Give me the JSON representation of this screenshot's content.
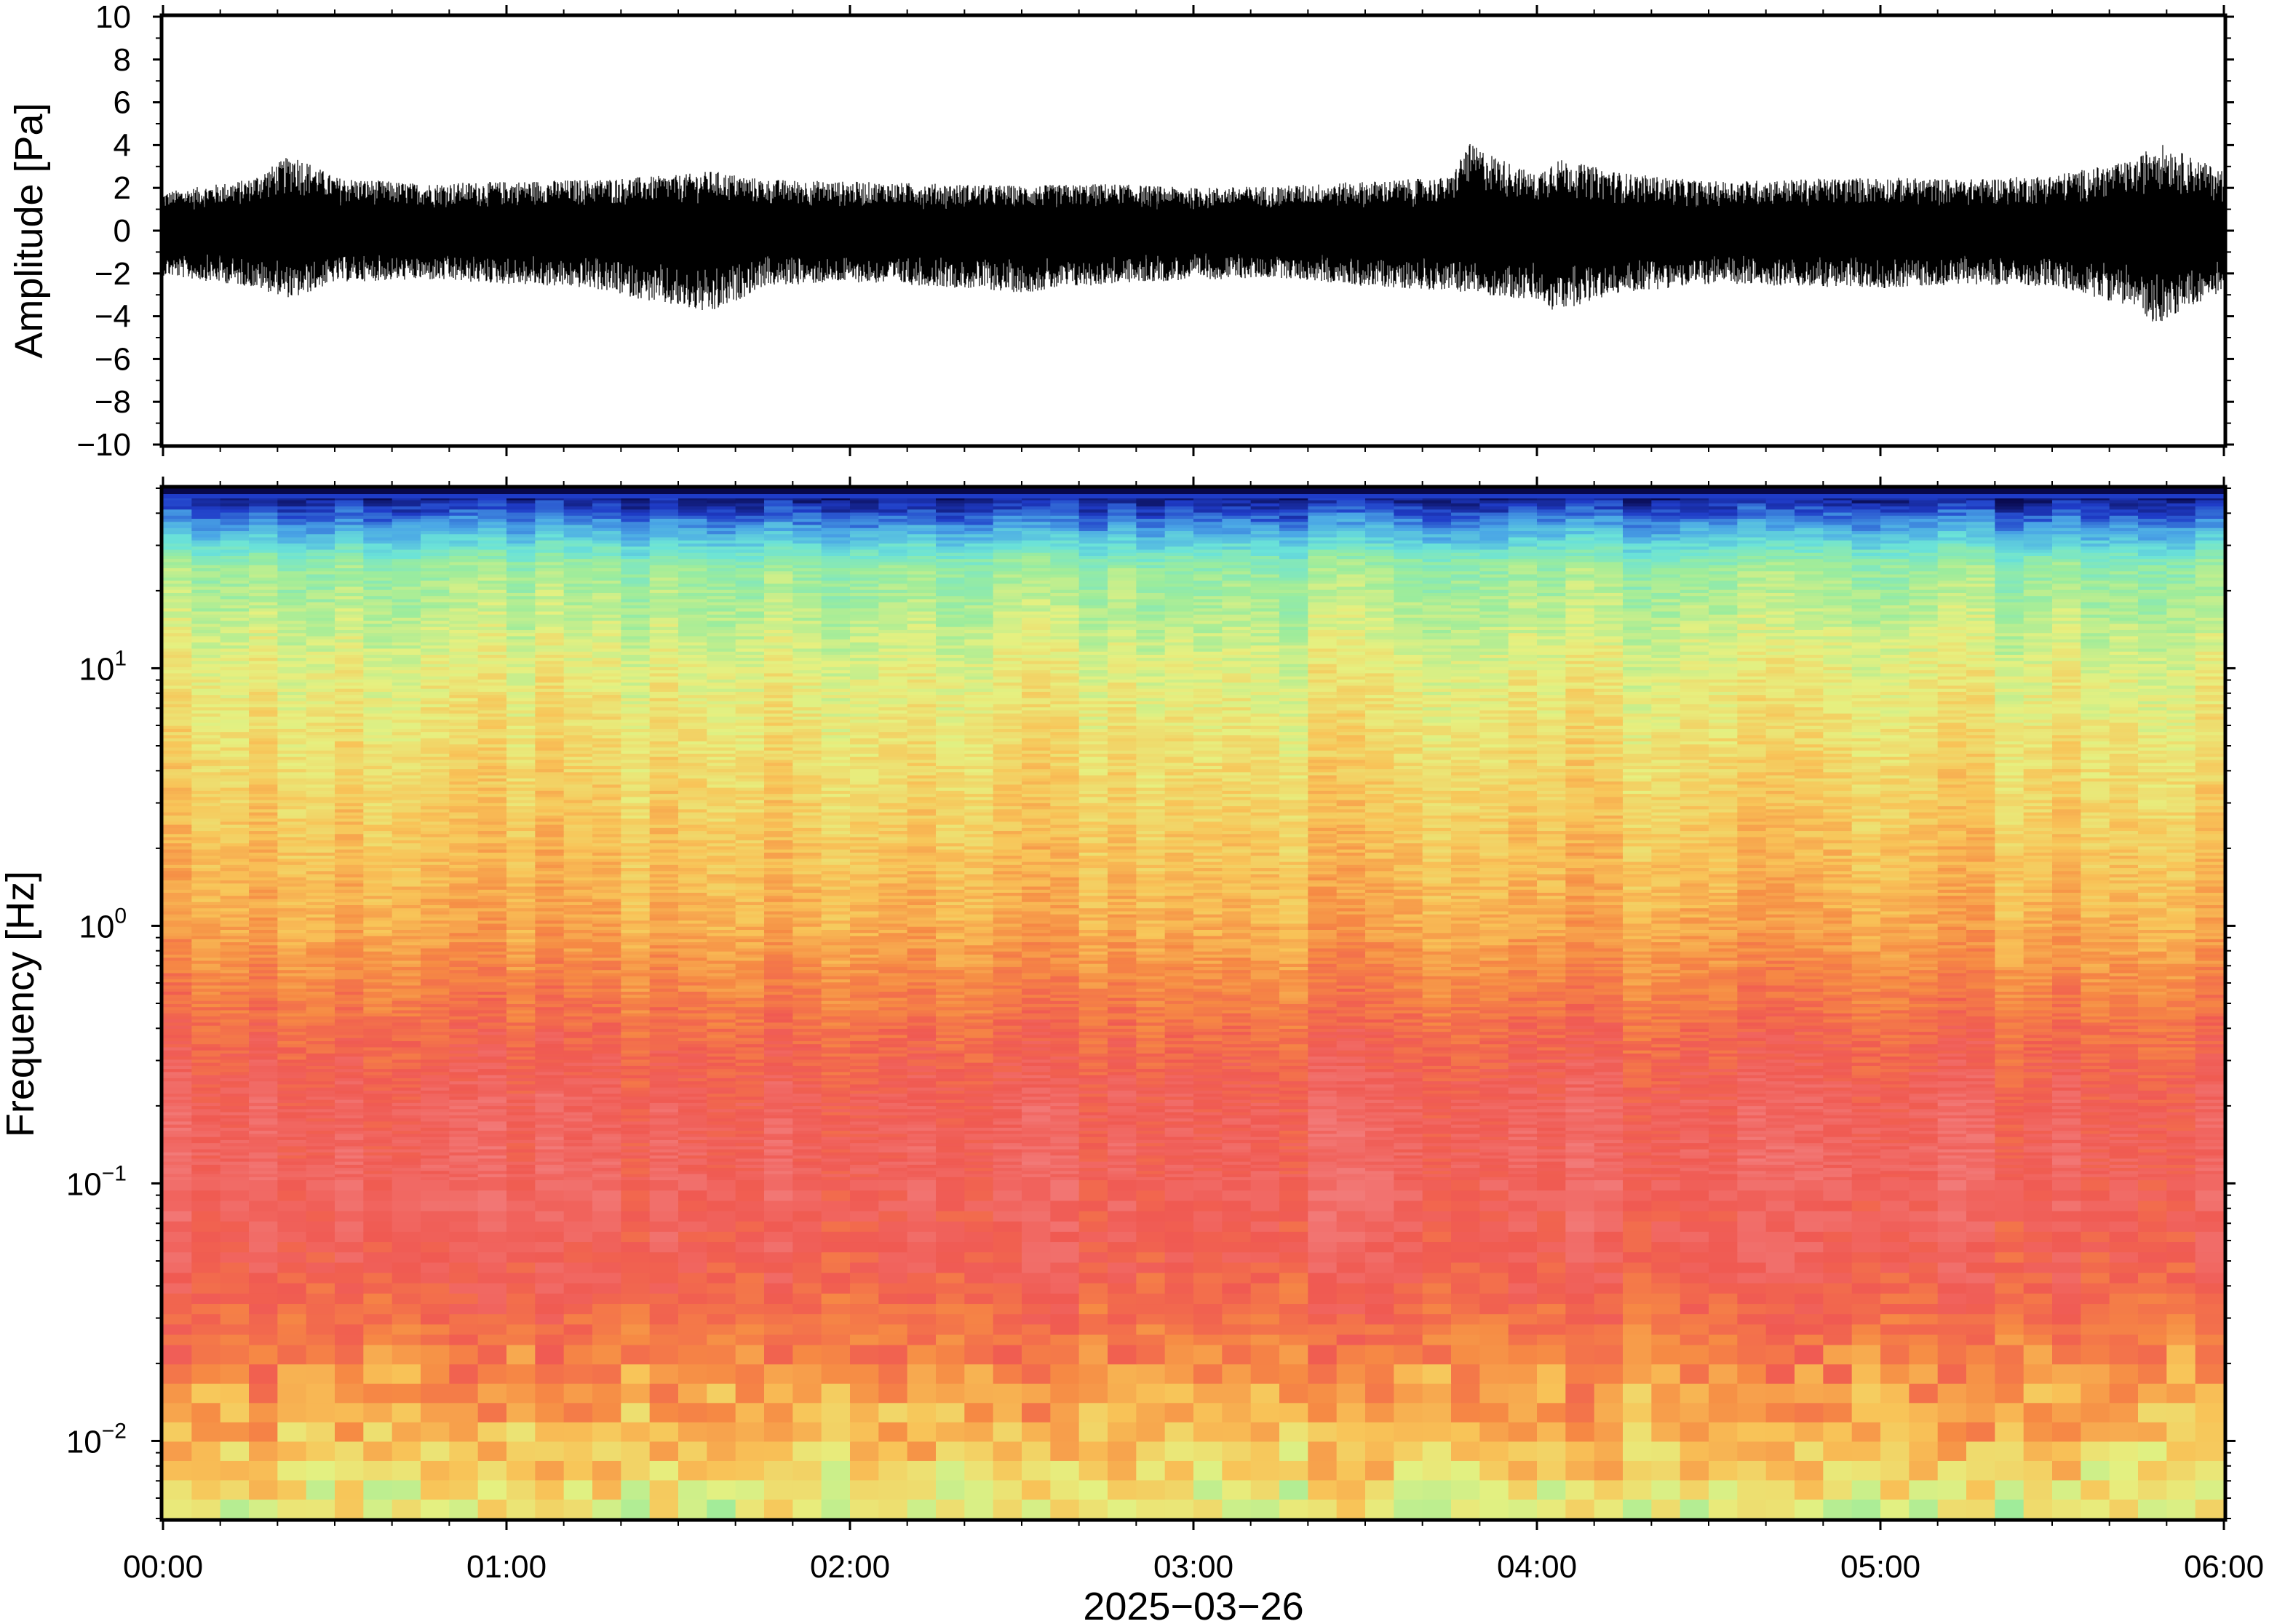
{
  "chart_data": [
    {
      "panel": "waveform",
      "type": "line",
      "ylabel": "Amplitude [Pa]",
      "ylim": [
        -10,
        10
      ],
      "yticks": [
        "10",
        "8",
        "6",
        "4",
        "2",
        "0",
        "−2",
        "−4",
        "−6",
        "−8",
        "−10"
      ],
      "ytick_values": [
        10,
        8,
        6,
        4,
        2,
        0,
        -2,
        -4,
        -6,
        -8,
        -10
      ],
      "xlim_hours": [
        0,
        6
      ],
      "series": [
        {
          "color": "#000000",
          "envelope_x_hours": [
            0.0,
            0.25,
            0.38,
            0.5,
            0.75,
            1.0,
            1.25,
            1.5,
            1.6,
            1.75,
            2.0,
            2.25,
            2.5,
            2.75,
            3.0,
            3.25,
            3.5,
            3.75,
            3.8,
            4.0,
            4.05,
            4.25,
            4.5,
            4.75,
            5.0,
            5.25,
            5.5,
            5.75,
            5.8,
            6.0
          ],
          "envelope_upper": [
            1.8,
            2.4,
            3.6,
            2.5,
            2.2,
            2.3,
            2.4,
            2.6,
            2.8,
            2.4,
            2.3,
            2.2,
            2.1,
            2.2,
            2.0,
            2.1,
            2.3,
            2.5,
            4.1,
            2.6,
            3.4,
            2.7,
            2.3,
            2.4,
            2.5,
            2.4,
            2.6,
            3.3,
            4.2,
            2.8
          ],
          "envelope_lower": [
            -2.1,
            -2.6,
            -3.2,
            -2.4,
            -2.3,
            -2.5,
            -2.7,
            -3.6,
            -3.9,
            -2.6,
            -2.4,
            -2.6,
            -2.9,
            -2.5,
            -2.3,
            -2.2,
            -2.6,
            -2.8,
            -2.9,
            -3.3,
            -3.8,
            -2.9,
            -2.5,
            -2.6,
            -2.7,
            -2.5,
            -2.6,
            -3.6,
            -4.4,
            -2.8
          ]
        }
      ]
    },
    {
      "panel": "spectrogram",
      "type": "heatmap",
      "ylabel": "Frequency [Hz]",
      "yscale": "log",
      "ylim_hz": [
        0.005,
        50
      ],
      "yticks": [
        {
          "base": "10",
          "exp": "−2",
          "value": 0.01
        },
        {
          "base": "10",
          "exp": "−1",
          "value": 0.1
        },
        {
          "base": "10",
          "exp": "0",
          "value": 1
        },
        {
          "base": "10",
          "exp": "1",
          "value": 10
        }
      ],
      "xlabel": "2025−03−26",
      "xlim_hours": [
        0,
        6
      ],
      "xticks": [
        "00:00",
        "01:00",
        "02:00",
        "03:00",
        "04:00",
        "05:00",
        "06:00"
      ],
      "colormap": "rainbow (blue = low power, red = high power)",
      "colormap_stops": [
        "#08084a",
        "#1f3cc8",
        "#4aa6e6",
        "#6be3d8",
        "#9cec9c",
        "#e6f080",
        "#f8c458",
        "#f68a44",
        "#f05a52",
        "#f27a78"
      ],
      "band_profile_log10_hz": [
        -2.3,
        -2.0,
        -1.6,
        -1.3,
        -1.0,
        -0.7,
        -0.4,
        0.0,
        0.5,
        1.0,
        1.4,
        1.7
      ],
      "band_profile_level": [
        0.55,
        0.68,
        0.82,
        0.9,
        0.93,
        0.92,
        0.85,
        0.72,
        0.64,
        0.56,
        0.44,
        0.0
      ]
    }
  ]
}
